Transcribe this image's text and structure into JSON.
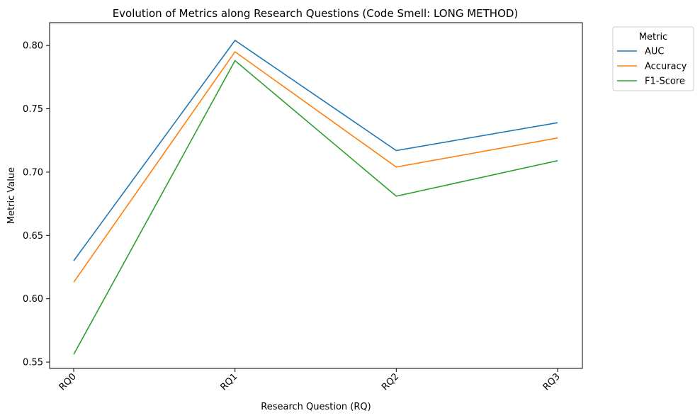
{
  "chart_data": {
    "type": "line",
    "title": "Evolution of Metrics along Research Questions (Code Smell: LONG METHOD)",
    "xlabel": "Research Question (RQ)",
    "ylabel": "Metric Value",
    "categories": [
      "RQ0",
      "RQ1",
      "RQ2",
      "RQ3"
    ],
    "ylim": [
      0.545,
      0.818
    ],
    "yticks": [
      0.55,
      0.6,
      0.65,
      0.7,
      0.75,
      0.8
    ],
    "ytick_labels": [
      "0.55",
      "0.60",
      "0.65",
      "0.70",
      "0.75",
      "0.80"
    ],
    "grid": false,
    "legend": {
      "title": "Metric",
      "placement": "outside-top-right"
    },
    "series": [
      {
        "name": "AUC",
        "color": "#1f77b4",
        "values": [
          0.63,
          0.804,
          0.717,
          0.739
        ]
      },
      {
        "name": "Accuracy",
        "color": "#ff7f0e",
        "values": [
          0.613,
          0.795,
          0.704,
          0.727
        ]
      },
      {
        "name": "F1-Score",
        "color": "#2ca02c",
        "values": [
          0.556,
          0.788,
          0.681,
          0.709
        ]
      }
    ]
  }
}
